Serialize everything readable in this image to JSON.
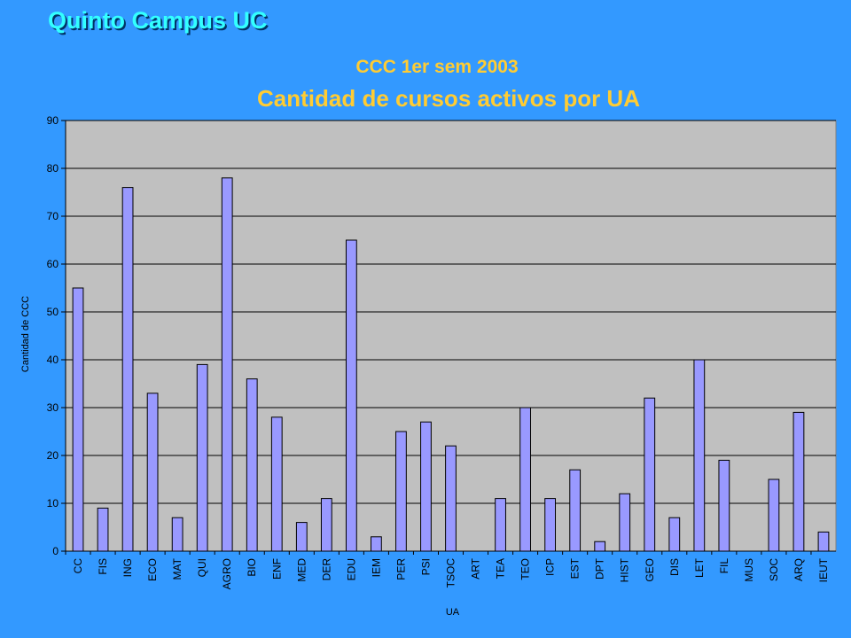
{
  "slide": {
    "title": "Quinto Campus UC"
  },
  "chart_data": {
    "type": "bar",
    "subtitle": "CCC 1er sem 2003",
    "title": "Cantidad de cursos activos por UA",
    "xlabel": "UA",
    "ylabel": "Cantidad de CCC",
    "ylim": [
      0,
      90
    ],
    "yticks": [
      0,
      10,
      20,
      30,
      40,
      50,
      60,
      70,
      80,
      90
    ],
    "grid": true,
    "categories": [
      "CC",
      "FIS",
      "ING",
      "ECO",
      "MAT",
      "QUI",
      "AGRO",
      "BIO",
      "ENF",
      "MED",
      "DER",
      "EDU",
      "IEM",
      "PER",
      "PSI",
      "TSOC",
      "ART",
      "TEA",
      "TEO",
      "ICP",
      "EST",
      "DPT",
      "HIST",
      "GEO",
      "DIS",
      "LET",
      "FIL",
      "MUS",
      "SOC",
      "ARQ",
      "IEUT"
    ],
    "values": [
      55,
      9,
      76,
      33,
      7,
      39,
      78,
      36,
      28,
      6,
      11,
      65,
      3,
      25,
      27,
      22,
      0,
      11,
      30,
      11,
      17,
      2,
      12,
      32,
      7,
      40,
      19,
      0,
      15,
      29,
      4
    ],
    "colors": {
      "bar": "#9999ff",
      "plot_bg": "#c0c0c0",
      "axis_text": "#000000"
    }
  }
}
